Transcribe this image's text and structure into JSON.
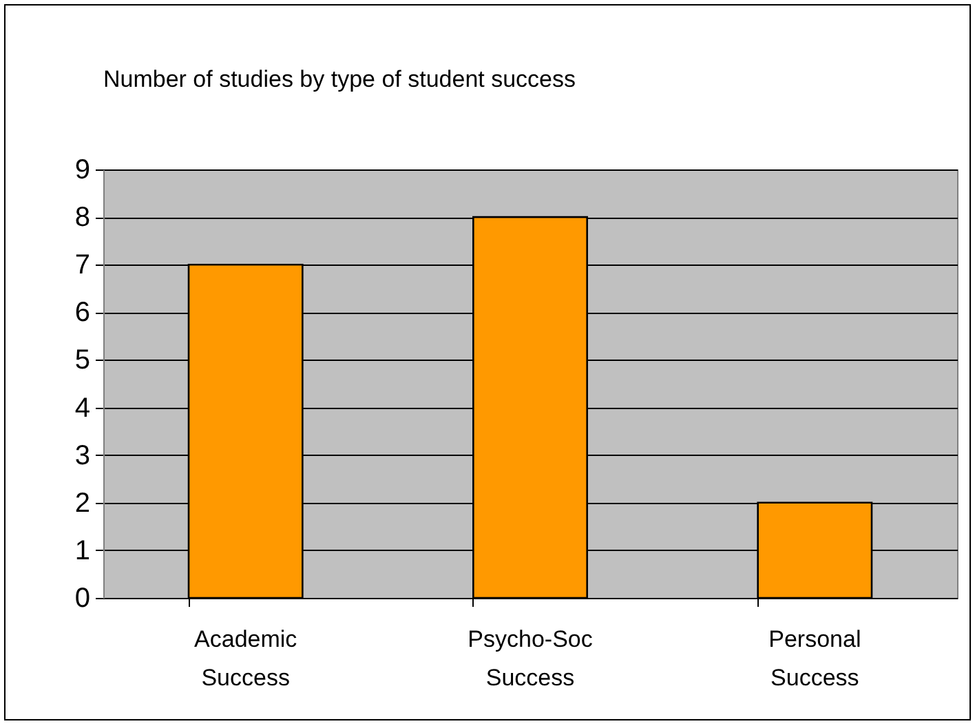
{
  "chart_data": {
    "type": "bar",
    "title": "Number of studies by type of student success",
    "categories": [
      "Academic Success",
      "Psycho-Soc Success",
      "Personal Success"
    ],
    "values": [
      7,
      8,
      2
    ],
    "color": "#ff9900",
    "ylim": [
      0,
      9
    ],
    "yticks": [
      0,
      1,
      2,
      3,
      4,
      5,
      6,
      7,
      8,
      9
    ],
    "grid": "y"
  }
}
